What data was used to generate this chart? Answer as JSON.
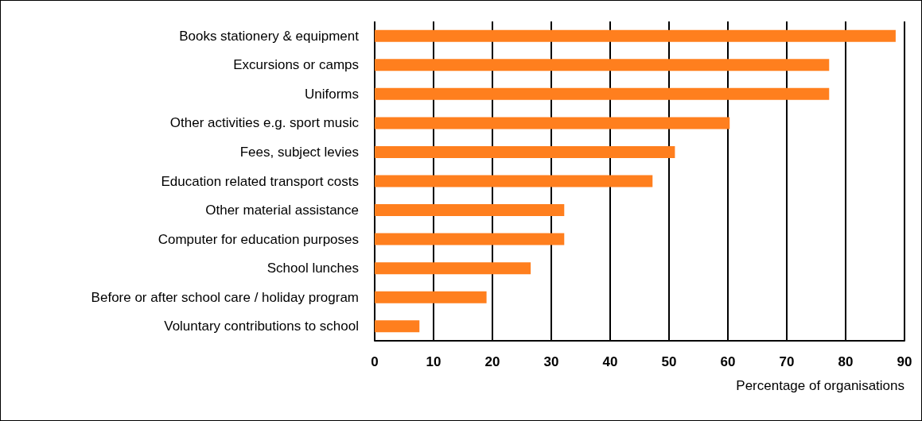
{
  "chart_data": {
    "type": "bar",
    "orientation": "horizontal",
    "xlabel": "Percentage of organisations",
    "categories": [
      "Books stationery & equipment",
      "Excursions or camps",
      "Uniforms",
      "Other activities e.g. sport music",
      "Fees, subject levies",
      "Education related transport costs",
      "Other material assistance",
      "Computer for education purposes",
      "School lunches",
      "Before or after school care / holiday program",
      "Voluntary contributions to school"
    ],
    "values": [
      88.5,
      77.2,
      77.2,
      60.3,
      51.0,
      47.2,
      32.2,
      32.2,
      26.5,
      19.0,
      7.6
    ],
    "color": "#ff7f1e",
    "xlim": [
      0,
      90
    ],
    "xticks": [
      0,
      10,
      20,
      30,
      40,
      50,
      60,
      70,
      80,
      90
    ],
    "grid": "x"
  }
}
